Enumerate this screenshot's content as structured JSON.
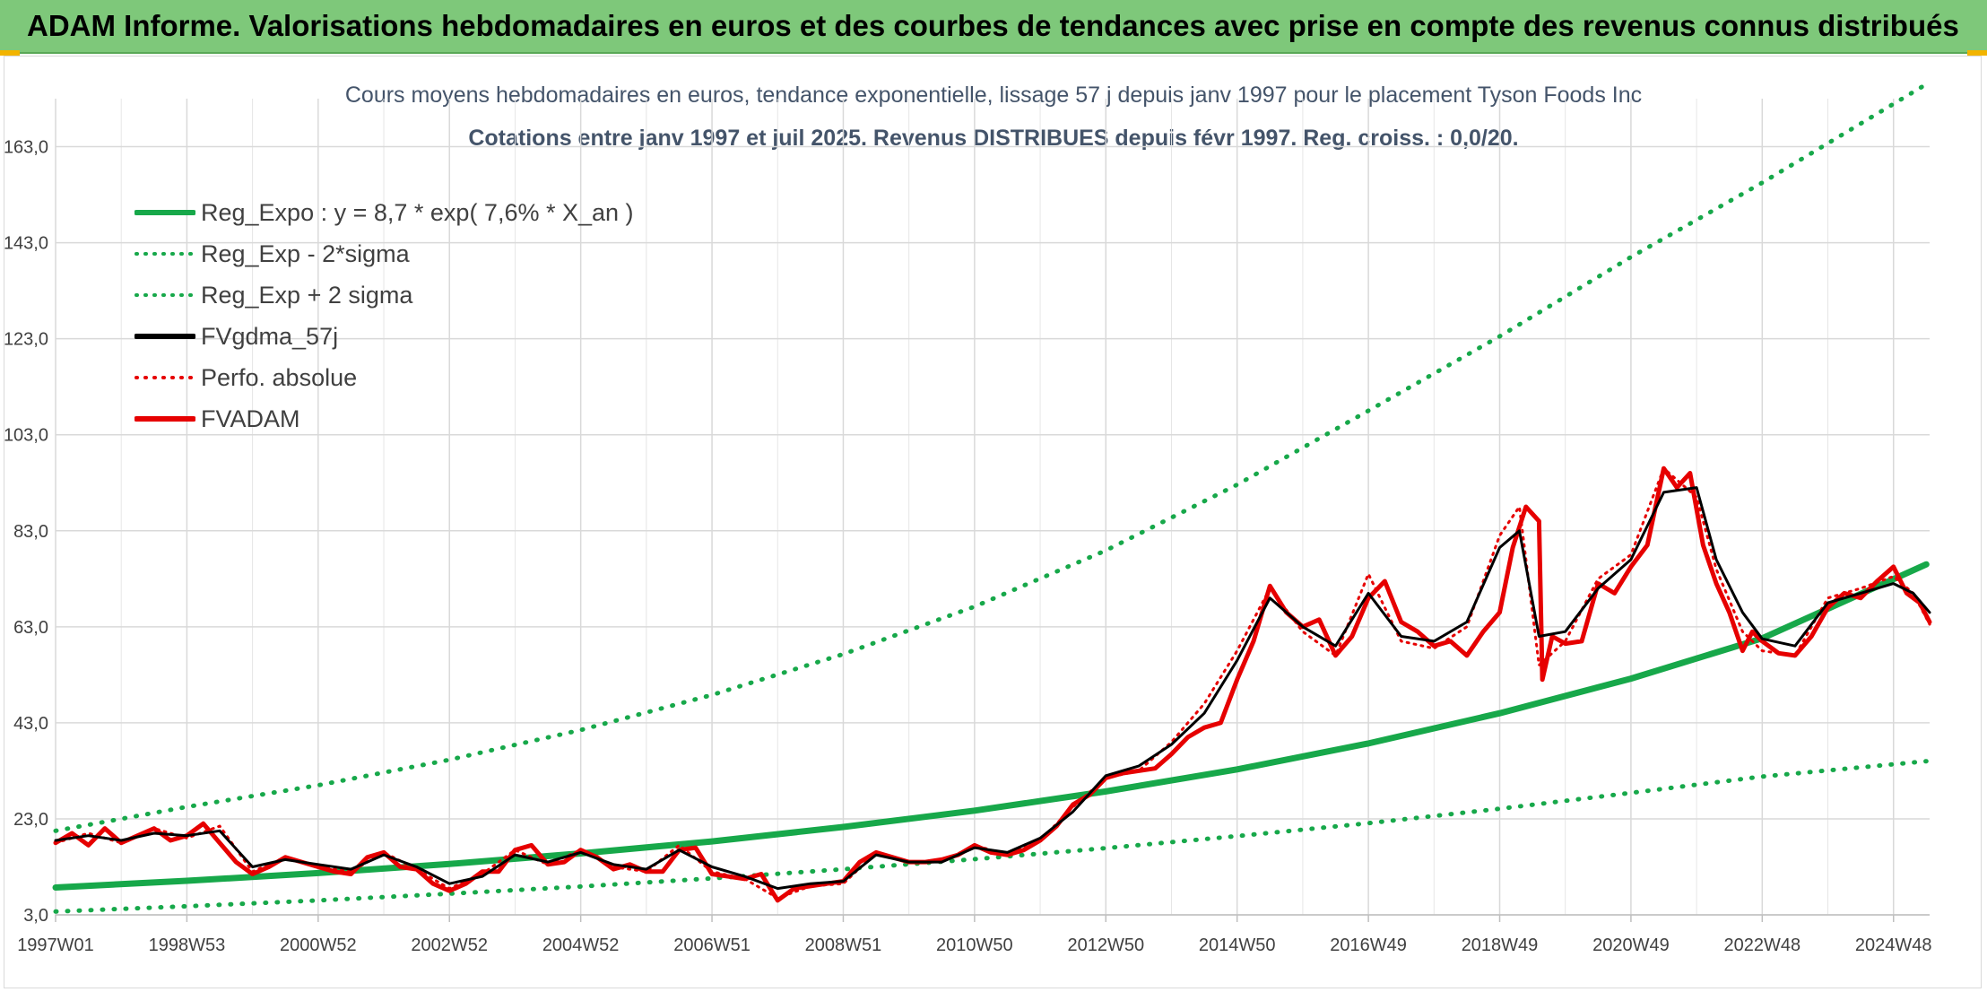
{
  "banner": {
    "title": "ADAM Informe. Valorisations hebdomadaires en euros et des courbes de tendances avec prise en compte des revenus connus distribués"
  },
  "chart_data": {
    "type": "line",
    "title": "Cours moyens hebdomadaires en euros, tendance exponentielle, lissage 57 j depuis janv 1997 pour le placement Tyson Foods Inc",
    "subtitle": "Cotations entre janv 1997 et juil 2025. Revenus DISTRIBUES depuis févr 1997. Reg. croiss. : 0,0/20.",
    "xlabel": "",
    "ylabel": "",
    "x_range": [
      "1997W01",
      "2025W29"
    ],
    "ylim": [
      3.0,
      173.0
    ],
    "y_ticks": [
      "3,0",
      "23,0",
      "43,0",
      "63,0",
      "83,0",
      "103,0",
      "123,0",
      "143,0",
      "163,0"
    ],
    "y_tick_values": [
      3,
      23,
      43,
      63,
      83,
      103,
      123,
      143,
      163
    ],
    "x_ticks": [
      "1997W01",
      "1998W53",
      "2000W52",
      "2002W52",
      "2004W52",
      "2006W51",
      "2008W51",
      "2010W50",
      "2012W50",
      "2014W50",
      "2016W49",
      "2018W49",
      "2020W49",
      "2022W48",
      "2024W48"
    ],
    "x_tick_years": [
      1997.0,
      1999.0,
      2001.0,
      2003.0,
      2005.0,
      2007.0,
      2009.0,
      2011.0,
      2013.0,
      2015.0,
      2017.0,
      2019.0,
      2021.0,
      2023.0,
      2025.0
    ],
    "grid": true,
    "legend_position": "top-left",
    "series": [
      {
        "name": "Reg_Expo : y = 8,7 * exp( 7,6% *  X_an )",
        "color": "#17a84a",
        "style": "solid",
        "x": [
          1997.0,
          1999.0,
          2001.0,
          2003.0,
          2005.0,
          2007.0,
          2009.0,
          2011.0,
          2013.0,
          2015.0,
          2017.0,
          2019.0,
          2021.0,
          2023.0,
          2025.5
        ],
        "values": [
          8.7,
          10.1,
          11.7,
          13.6,
          15.8,
          18.3,
          21.3,
          24.7,
          28.7,
          33.3,
          38.7,
          45.0,
          52.2,
          60.6,
          76.0
        ]
      },
      {
        "name": "Reg_Exp - 2*sigma",
        "color": "#17a84a",
        "style": "dotted",
        "x": [
          1997.0,
          1999.0,
          2001.0,
          2003.0,
          2005.0,
          2007.0,
          2009.0,
          2011.0,
          2013.0,
          2015.0,
          2017.0,
          2019.0,
          2021.0,
          2023.0,
          2025.5
        ],
        "values": [
          3.7,
          4.8,
          6.0,
          7.4,
          8.9,
          10.6,
          12.5,
          14.6,
          16.9,
          19.4,
          22.1,
          25.1,
          28.4,
          31.8,
          35.0
        ]
      },
      {
        "name": "Reg_Exp + 2 sigma",
        "color": "#17a84a",
        "style": "dotted",
        "x": [
          1997.0,
          1999.0,
          2001.0,
          2003.0,
          2005.0,
          2007.0,
          2009.0,
          2011.0,
          2013.0,
          2015.0,
          2017.0,
          2019.0,
          2021.0,
          2023.0,
          2025.5
        ],
        "values": [
          20.5,
          25.5,
          30.0,
          35.3,
          41.5,
          48.8,
          57.3,
          67.2,
          78.9,
          92.6,
          108.0,
          123.5,
          140.0,
          155.5,
          176.0
        ]
      },
      {
        "name": "FVgdma_57j",
        "color": "#000000",
        "style": "solid",
        "x": [
          1997.0,
          1997.5,
          1998.0,
          1998.5,
          1999.0,
          1999.5,
          2000.0,
          2000.5,
          2001.0,
          2001.5,
          2002.0,
          2002.5,
          2003.0,
          2003.5,
          2004.0,
          2004.5,
          2005.0,
          2005.5,
          2006.0,
          2006.5,
          2007.0,
          2007.5,
          2008.0,
          2008.5,
          2009.0,
          2009.5,
          2010.0,
          2010.5,
          2011.0,
          2011.5,
          2012.0,
          2012.5,
          2013.0,
          2013.5,
          2014.0,
          2014.5,
          2015.0,
          2015.5,
          2016.0,
          2016.5,
          2017.0,
          2017.5,
          2018.0,
          2018.5,
          2019.0,
          2019.3,
          2019.6,
          2020.0,
          2020.5,
          2021.0,
          2021.5,
          2022.0,
          2022.3,
          2022.7,
          2023.0,
          2023.5,
          2024.0,
          2024.5,
          2025.0,
          2025.3,
          2025.55
        ],
        "values": [
          18.5,
          19.5,
          18.5,
          20.0,
          19.5,
          20.5,
          13.0,
          14.5,
          13.5,
          12.5,
          15.5,
          13.0,
          9.5,
          11.0,
          15.5,
          14.0,
          16.0,
          13.5,
          12.5,
          16.5,
          13.0,
          11.0,
          8.5,
          9.5,
          10.0,
          15.5,
          14.0,
          14.0,
          17.0,
          16.0,
          19.0,
          24.5,
          32.0,
          34.0,
          38.5,
          45.0,
          56.0,
          69.0,
          63.0,
          59.0,
          70.0,
          61.0,
          60.0,
          64.0,
          79.5,
          83.0,
          61.0,
          62.0,
          71.0,
          77.0,
          91.0,
          92.0,
          77.0,
          66.0,
          60.5,
          59.0,
          68.0,
          70.0,
          72.0,
          70.0,
          66.0
        ]
      },
      {
        "name": "Perfo. absolue",
        "color": "#e60000",
        "style": "dotted",
        "x": [
          1997.0,
          1997.5,
          1998.0,
          1998.5,
          1999.0,
          1999.5,
          2000.0,
          2000.5,
          2001.0,
          2001.5,
          2002.0,
          2002.5,
          2003.0,
          2003.5,
          2004.0,
          2004.5,
          2005.0,
          2005.5,
          2006.0,
          2006.5,
          2007.0,
          2007.5,
          2008.0,
          2008.5,
          2009.0,
          2009.5,
          2010.0,
          2010.5,
          2011.0,
          2011.5,
          2012.0,
          2012.5,
          2013.0,
          2013.5,
          2014.0,
          2014.5,
          2015.0,
          2015.5,
          2016.0,
          2016.5,
          2017.0,
          2017.5,
          2018.0,
          2018.5,
          2019.0,
          2019.3,
          2019.6,
          2020.0,
          2020.5,
          2021.0,
          2021.5,
          2022.0,
          2022.3,
          2022.7,
          2023.0,
          2023.5,
          2024.0,
          2024.5,
          2025.0,
          2025.3,
          2025.55
        ],
        "values": [
          18.0,
          20.0,
          18.0,
          21.0,
          19.0,
          21.5,
          12.0,
          15.0,
          13.0,
          12.0,
          16.0,
          12.5,
          8.5,
          11.5,
          16.5,
          13.5,
          16.5,
          13.0,
          12.0,
          17.5,
          12.0,
          10.5,
          6.5,
          9.0,
          9.5,
          16.0,
          14.0,
          14.0,
          17.5,
          15.5,
          18.5,
          25.5,
          31.5,
          33.0,
          39.0,
          47.0,
          58.0,
          71.0,
          62.0,
          57.0,
          74.0,
          60.0,
          58.5,
          63.0,
          82.0,
          88.0,
          55.0,
          60.0,
          73.0,
          78.0,
          96.0,
          90.0,
          75.0,
          62.0,
          58.0,
          57.0,
          69.0,
          71.0,
          73.5,
          70.0,
          63.5
        ]
      },
      {
        "name": "FVADAM",
        "color": "#e60000",
        "style": "solid",
        "x": [
          1997.0,
          1997.25,
          1997.5,
          1997.75,
          1998.0,
          1998.25,
          1998.5,
          1998.75,
          1999.0,
          1999.25,
          1999.5,
          1999.75,
          2000.0,
          2000.25,
          2000.5,
          2000.75,
          2001.0,
          2001.25,
          2001.5,
          2001.75,
          2002.0,
          2002.25,
          2002.5,
          2002.75,
          2003.0,
          2003.25,
          2003.5,
          2003.75,
          2004.0,
          2004.25,
          2004.5,
          2004.75,
          2005.0,
          2005.25,
          2005.5,
          2005.75,
          2006.0,
          2006.25,
          2006.5,
          2006.75,
          2007.0,
          2007.25,
          2007.5,
          2007.75,
          2008.0,
          2008.25,
          2008.5,
          2008.75,
          2009.0,
          2009.25,
          2009.5,
          2009.75,
          2010.0,
          2010.25,
          2010.5,
          2010.75,
          2011.0,
          2011.25,
          2011.5,
          2011.75,
          2012.0,
          2012.25,
          2012.5,
          2012.75,
          2013.0,
          2013.25,
          2013.5,
          2013.75,
          2014.0,
          2014.25,
          2014.5,
          2014.75,
          2015.0,
          2015.25,
          2015.5,
          2015.75,
          2016.0,
          2016.25,
          2016.5,
          2016.75,
          2017.0,
          2017.25,
          2017.5,
          2017.75,
          2018.0,
          2018.25,
          2018.5,
          2018.75,
          2019.0,
          2019.2,
          2019.4,
          2019.6,
          2019.65,
          2019.8,
          2020.0,
          2020.25,
          2020.5,
          2020.75,
          2021.0,
          2021.25,
          2021.5,
          2021.7,
          2021.9,
          2022.1,
          2022.3,
          2022.5,
          2022.7,
          2022.85,
          2023.0,
          2023.25,
          2023.5,
          2023.75,
          2024.0,
          2024.25,
          2024.5,
          2024.75,
          2025.0,
          2025.2,
          2025.4,
          2025.55
        ],
        "values": [
          18.0,
          20.0,
          17.5,
          21.0,
          18.0,
          19.5,
          21.0,
          18.5,
          19.5,
          22.0,
          18.0,
          14.0,
          11.5,
          13.0,
          15.0,
          14.0,
          13.0,
          12.0,
          11.5,
          15.0,
          16.0,
          13.0,
          12.5,
          9.5,
          8.0,
          9.5,
          12.0,
          12.0,
          16.5,
          17.5,
          13.5,
          14.0,
          16.5,
          15.0,
          12.5,
          13.5,
          12.0,
          12.0,
          16.5,
          17.0,
          11.5,
          11.0,
          10.5,
          11.5,
          6.0,
          8.5,
          9.0,
          9.5,
          10.0,
          14.0,
          16.0,
          15.0,
          14.0,
          14.0,
          14.5,
          15.5,
          17.5,
          16.0,
          15.5,
          16.5,
          18.5,
          21.5,
          26.0,
          28.0,
          31.5,
          32.5,
          33.0,
          33.5,
          36.5,
          40.0,
          42.0,
          43.0,
          52.0,
          60.0,
          71.5,
          66.0,
          63.0,
          64.5,
          57.0,
          61.0,
          69.0,
          72.5,
          64.0,
          62.0,
          59.0,
          60.0,
          57.0,
          62.0,
          66.0,
          79.5,
          88.0,
          85.0,
          52.0,
          61.0,
          59.5,
          60.0,
          72.0,
          70.0,
          75.5,
          80.0,
          96.0,
          92.0,
          95.0,
          80.0,
          72.0,
          66.0,
          58.0,
          62.0,
          60.0,
          57.5,
          57.0,
          61.0,
          67.0,
          70.0,
          69.0,
          72.5,
          75.5,
          70.0,
          68.0,
          64.0
        ]
      }
    ]
  }
}
